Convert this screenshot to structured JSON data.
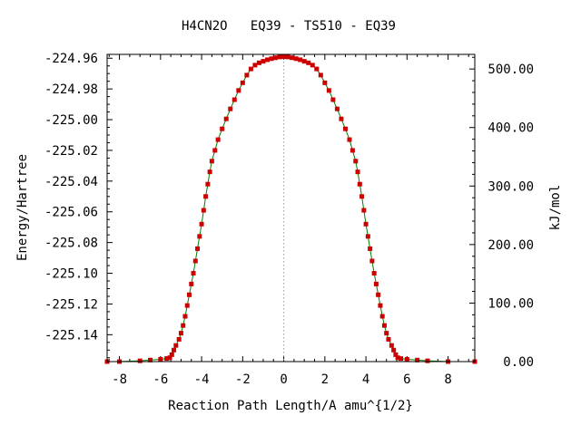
{
  "chart_data": {
    "type": "line",
    "title": "H4CN2O   EQ39 - TS510 - EQ39",
    "xlabel": "Reaction Path Length/A amu^{1/2}",
    "ylabel": "Energy/Hartree",
    "y2label": "kJ/mol",
    "xlim": [
      -8.6,
      9.3
    ],
    "ylim": [
      -225.1575,
      -224.9575
    ],
    "y2lim": [
      0,
      525
    ],
    "x_ticks": [
      "-8",
      "-6",
      "-4",
      "-2",
      "0",
      "2",
      "4",
      "6",
      "8"
    ],
    "y_ticks": [
      "-224.96",
      "-224.98",
      "-225.00",
      "-225.02",
      "-225.04",
      "-225.06",
      "-225.08",
      "-225.10",
      "-225.12",
      "-225.14"
    ],
    "y2_ticks": [
      "0.00",
      "100.00",
      "200.00",
      "300.00",
      "400.00",
      "500.00"
    ],
    "ts_line_x": 0,
    "series": [
      {
        "color": "#008000",
        "marker_color": "#cc0000",
        "x": [
          -8.6,
          -8.0,
          -7.0,
          -6.5,
          -6.0,
          -5.7,
          -5.55,
          -5.45,
          -5.35,
          -5.25,
          -5.1,
          -5.0,
          -4.9,
          -4.8,
          -4.7,
          -4.6,
          -4.5,
          -4.4,
          -4.3,
          -4.2,
          -4.1,
          -4.0,
          -3.9,
          -3.8,
          -3.7,
          -3.6,
          -3.5,
          -3.35,
          -3.2,
          -3.0,
          -2.8,
          -2.6,
          -2.4,
          -2.2,
          -2.0,
          -1.8,
          -1.6,
          -1.4,
          -1.2,
          -1.0,
          -0.8,
          -0.6,
          -0.4,
          -0.2,
          0.0,
          0.2,
          0.4,
          0.6,
          0.8,
          1.0,
          1.2,
          1.4,
          1.6,
          1.8,
          2.0,
          2.2,
          2.4,
          2.6,
          2.8,
          3.0,
          3.2,
          3.35,
          3.5,
          3.6,
          3.7,
          3.8,
          3.9,
          4.0,
          4.1,
          4.2,
          4.3,
          4.4,
          4.5,
          4.6,
          4.7,
          4.8,
          4.9,
          5.0,
          5.1,
          5.25,
          5.35,
          5.45,
          5.55,
          5.7,
          6.0,
          6.5,
          7.0,
          8.0,
          9.3
        ],
        "y": [
          -225.1575,
          -225.1575,
          -225.157,
          -225.1565,
          -225.156,
          -225.1555,
          -225.155,
          -225.153,
          -225.15,
          -225.147,
          -225.143,
          -225.139,
          -225.134,
          -225.128,
          -225.121,
          -225.114,
          -225.107,
          -225.1,
          -225.092,
          -225.084,
          -225.076,
          -225.068,
          -225.059,
          -225.05,
          -225.042,
          -225.034,
          -225.027,
          -225.02,
          -225.013,
          -225.006,
          -224.9995,
          -224.993,
          -224.987,
          -224.981,
          -224.976,
          -224.971,
          -224.967,
          -224.9645,
          -224.963,
          -224.962,
          -224.961,
          -224.9603,
          -224.9597,
          -224.9592,
          -224.959,
          -224.9592,
          -224.9597,
          -224.9603,
          -224.961,
          -224.962,
          -224.963,
          -224.9645,
          -224.967,
          -224.971,
          -224.976,
          -224.981,
          -224.987,
          -224.993,
          -224.9995,
          -225.006,
          -225.013,
          -225.02,
          -225.027,
          -225.034,
          -225.042,
          -225.05,
          -225.059,
          -225.068,
          -225.076,
          -225.084,
          -225.092,
          -225.1,
          -225.107,
          -225.114,
          -225.121,
          -225.128,
          -225.134,
          -225.139,
          -225.143,
          -225.147,
          -225.15,
          -225.153,
          -225.155,
          -225.1555,
          -225.156,
          -225.1565,
          -225.157,
          -225.1575,
          -225.1575
        ]
      }
    ]
  }
}
